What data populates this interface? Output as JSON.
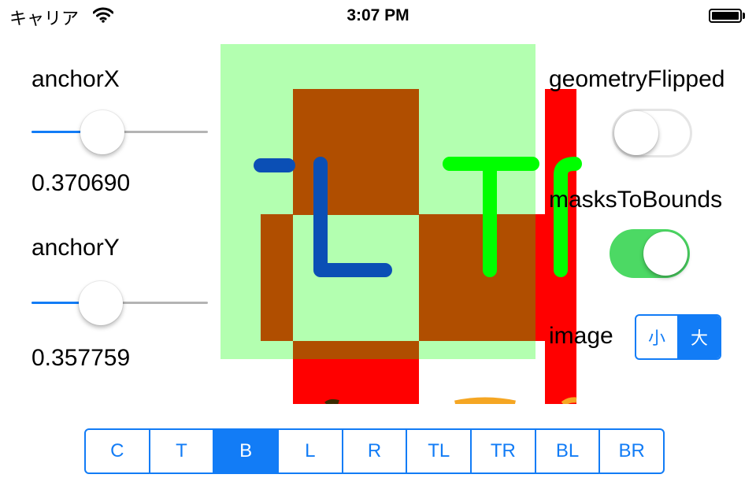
{
  "status_bar": {
    "carrier": "キャリア",
    "time": "3:07 PM",
    "battery": "full"
  },
  "anchor_x": {
    "label": "anchorX",
    "value": 0.37069,
    "value_text": "0.370690"
  },
  "anchor_y": {
    "label": "anchorY",
    "value": 0.357759,
    "value_text": "0.357759"
  },
  "geometry_flipped": {
    "label": "geometryFlipped",
    "on": false
  },
  "masks_to_bounds": {
    "label": "masksToBounds",
    "on": true
  },
  "image_size": {
    "label": "image",
    "options": [
      "小",
      "大"
    ],
    "selected_index": 1
  },
  "anchor_point": {
    "options": [
      "C",
      "T",
      "B",
      "L",
      "R",
      "TL",
      "TR",
      "BL",
      "BR"
    ],
    "selected_index": 2
  },
  "colors": {
    "accent": "#127cf6",
    "switch_on": "#4cd964",
    "layer_bounds": "#b3ffb0",
    "image_brown": "#b04e00",
    "image_red": "#ff0000",
    "letter_blue": "#0b4fb5",
    "letter_green": "#00ff00",
    "orange": "#f5a623"
  },
  "icons": {
    "wifi": "wifi-icon",
    "battery": "battery-icon"
  }
}
